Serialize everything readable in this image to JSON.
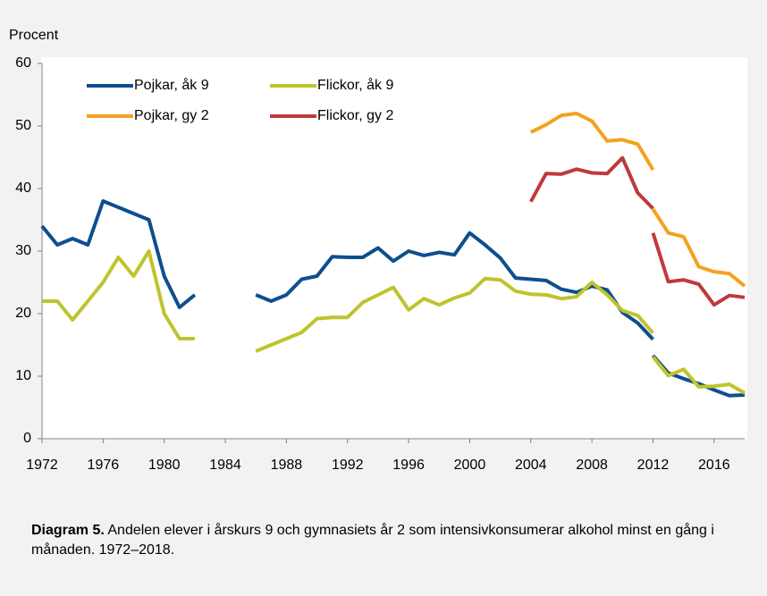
{
  "chart_data": {
    "type": "line",
    "y_label": "Procent",
    "caption_label": "Diagram 5.",
    "caption": "Andelen elever i årskurs 9 och gymnasiets år 2 som intensivkonsumerar alkohol minst en gång i månaden. 1972–2018.",
    "xlim": [
      1972,
      2018
    ],
    "ylim": [
      0,
      60
    ],
    "xticks": [
      1972,
      1976,
      1980,
      1984,
      1988,
      1992,
      1996,
      2000,
      2004,
      2008,
      2012,
      2016
    ],
    "yticks": [
      0,
      10,
      20,
      30,
      40,
      50,
      60
    ],
    "grid": false,
    "legend": "upper left",
    "series": [
      {
        "name": "Pojkar, åk 9",
        "color": "#0d4f8e",
        "x": [
          1972,
          1973,
          1974,
          1975,
          1976,
          1977,
          1978,
          1979,
          1980,
          1981,
          1982,
          1983,
          1984,
          1985,
          1986,
          1987,
          1988,
          1989,
          1990,
          1991,
          1992,
          1993,
          1994,
          1995,
          1996,
          1997,
          1998,
          1999,
          2000,
          2001,
          2002,
          2003,
          2004,
          2005,
          2006,
          2007,
          2008,
          2009,
          2010,
          2011,
          2012,
          2012,
          2013,
          2014,
          2015,
          2016,
          2017,
          2018
        ],
        "values": [
          34,
          31,
          32,
          31,
          38,
          37,
          36,
          35,
          26,
          21,
          23,
          null,
          null,
          null,
          23,
          22,
          23,
          25.5,
          26,
          29.1,
          29,
          29,
          30.5,
          28.4,
          30,
          29.3,
          29.8,
          29.4,
          32.9,
          31,
          28.9,
          25.7,
          25.5,
          25.3,
          23.9,
          23.4,
          24.4,
          23.8,
          20.2,
          18.5,
          15.9,
          13.3,
          10.5,
          9.6,
          8.8,
          7.8,
          6.9,
          7.0
        ]
      },
      {
        "name": "Flickor, åk 9",
        "color": "#bec42b",
        "x": [
          1972,
          1973,
          1974,
          1975,
          1976,
          1977,
          1978,
          1979,
          1980,
          1981,
          1982,
          1983,
          1984,
          1985,
          1986,
          1987,
          1988,
          1989,
          1990,
          1991,
          1992,
          1993,
          1994,
          1995,
          1996,
          1997,
          1998,
          1999,
          2000,
          2001,
          2002,
          2003,
          2004,
          2005,
          2006,
          2007,
          2008,
          2009,
          2010,
          2011,
          2012,
          2012,
          2013,
          2014,
          2015,
          2016,
          2017,
          2018
        ],
        "values": [
          22,
          22,
          19,
          22,
          25,
          29,
          26,
          30,
          20,
          16,
          16,
          null,
          null,
          null,
          14,
          15,
          16,
          17,
          19.2,
          19.4,
          19.4,
          21.8,
          23,
          24.2,
          20.6,
          22.4,
          21.4,
          22.5,
          23.3,
          25.6,
          25.4,
          23.6,
          23.1,
          23,
          22.4,
          22.7,
          25,
          23,
          20.5,
          19.7,
          16.9,
          13.1,
          10.1,
          11.1,
          8.3,
          8.4,
          8.7,
          7.3
        ]
      },
      {
        "name": "Pojkar, gy 2",
        "color": "#f4a21e",
        "x": [
          2004,
          2005,
          2006,
          2007,
          2008,
          2009,
          2010,
          2011,
          2012,
          2012,
          2013,
          2014,
          2015,
          2016,
          2017,
          2018
        ],
        "values": [
          49,
          50.2,
          51.7,
          52,
          50.8,
          47.6,
          47.8,
          47.1,
          43,
          36.7,
          32.9,
          32.3,
          27.5,
          26.7,
          26.4,
          24.4
        ]
      },
      {
        "name": "Flickor, gy 2",
        "color": "#c0393b",
        "x": [
          2004,
          2005,
          2006,
          2007,
          2008,
          2009,
          2010,
          2011,
          2012,
          2012,
          2013,
          2014,
          2015,
          2016,
          2017,
          2018
        ],
        "values": [
          37.9,
          42.4,
          42.3,
          43.1,
          42.5,
          42.4,
          44.9,
          39.3,
          36.8,
          32.9,
          25.1,
          25.4,
          24.7,
          21.4,
          22.9,
          22.6
        ]
      }
    ]
  }
}
